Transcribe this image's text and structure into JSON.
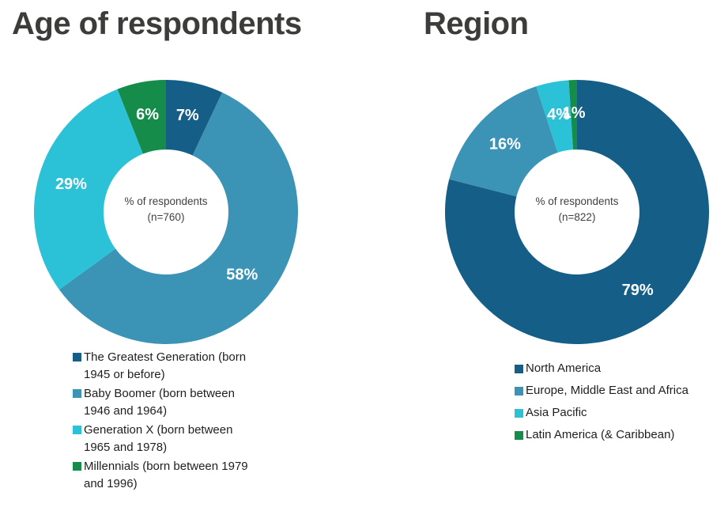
{
  "chart_data": [
    {
      "type": "pie",
      "subtype": "donut",
      "title": "Age of respondents",
      "center_label": {
        "line1": "% of respondents",
        "line2": "(n=760)"
      },
      "categories": [
        "The Greatest Generation (born 1945 or before)",
        "Baby Boomer (born between 1946 and 1964)",
        "Generation X (born between 1965 and 1978)",
        "Millennials (born between 1979 and 1996)"
      ],
      "values": [
        7,
        58,
        29,
        6
      ],
      "value_labels": [
        "7%",
        "58%",
        "29%",
        "6%"
      ],
      "colors": [
        "#145E87",
        "#3B93B5",
        "#2BC2D8",
        "#168C4A"
      ],
      "start_angle_deg": 0,
      "direction": "clockwise",
      "legend_position": "bottom-left"
    },
    {
      "type": "pie",
      "subtype": "donut",
      "title": "Region",
      "center_label": {
        "line1": "% of respondents",
        "line2": "(n=822)"
      },
      "categories": [
        "North America",
        "Europe, Middle East and Africa",
        "Asia Pacific",
        "Latin America (& Caribbean)"
      ],
      "values": [
        79,
        16,
        4,
        1
      ],
      "value_labels": [
        "79%",
        "16%",
        "4%",
        "1%"
      ],
      "colors": [
        "#145E87",
        "#3B93B5",
        "#2BC2D8",
        "#168C4A"
      ],
      "start_angle_deg": 0,
      "direction": "clockwise",
      "legend_position": "bottom-left"
    }
  ]
}
